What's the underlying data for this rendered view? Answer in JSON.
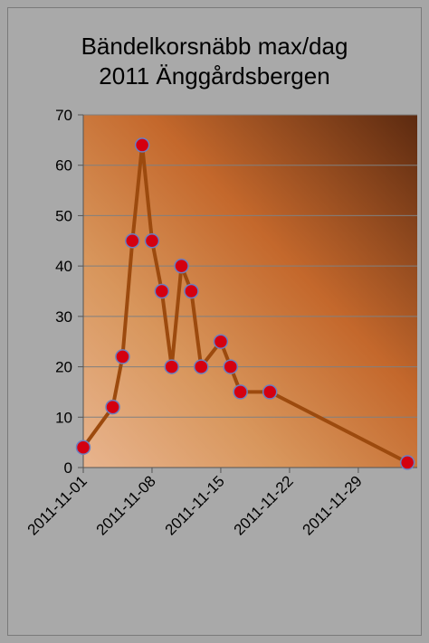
{
  "chart_data": {
    "type": "line",
    "title_lines": [
      "Bändelkorsnäbb max/dag",
      "2011 Änggårdsbergen"
    ],
    "xlabel": "",
    "ylabel": "",
    "ylim": [
      0,
      70
    ],
    "yticks": [
      0,
      10,
      20,
      30,
      40,
      50,
      60,
      70
    ],
    "xlim": [
      "2011-11-01",
      "2011-12-05"
    ],
    "xticks": [
      "2011-11-01",
      "2011-11-08",
      "2011-11-15",
      "2011-11-22",
      "2011-11-29"
    ],
    "grid": true,
    "legend": "none",
    "series": [
      {
        "x": [
          "2011-11-01",
          "2011-11-04",
          "2011-11-05",
          "2011-11-06",
          "2011-11-07",
          "2011-11-08",
          "2011-11-09",
          "2011-11-10",
          "2011-11-11",
          "2011-11-12",
          "2011-11-13",
          "2011-11-15",
          "2011-11-16",
          "2011-11-17",
          "2011-11-20",
          "2011-12-04"
        ],
        "values": [
          4,
          12,
          22,
          45,
          64,
          45,
          35,
          20,
          40,
          35,
          20,
          25,
          20,
          15,
          15,
          1
        ]
      }
    ],
    "colors": {
      "line": "#9c4a0e",
      "marker_fill": "#d40010",
      "marker_edge": "#6b7fc0",
      "gridline": "#808080",
      "plot_bg_light": "#e8b48e",
      "plot_bg_mid": "#c4682c",
      "plot_bg_dark": "#5c2a10"
    }
  }
}
